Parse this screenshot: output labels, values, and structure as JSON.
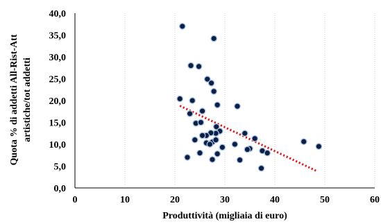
{
  "chart_data": {
    "type": "scatter",
    "title": "",
    "xlabel": "Produttività (migliaia di euro)",
    "ylabel_lines": [
      "Quota % di addetti All-Rist-Att",
      "artistiche/tot addetti"
    ],
    "xlim": [
      0,
      60
    ],
    "ylim": [
      0,
      40
    ],
    "x_ticks": [
      "0",
      "10",
      "20",
      "30",
      "40",
      "50",
      "60"
    ],
    "y_ticks": [
      "0,0",
      "5,0",
      "10,0",
      "15,0",
      "20,0",
      "25,0",
      "30,0",
      "35,0",
      "40,0"
    ],
    "grid": "vertical-dotted",
    "legend": "none",
    "series": [
      {
        "points": [
          {
            "x": 21.5,
            "y": 37.0
          },
          {
            "x": 27.8,
            "y": 34.2
          },
          {
            "x": 23.2,
            "y": 28.0
          },
          {
            "x": 24.8,
            "y": 27.8
          },
          {
            "x": 26.5,
            "y": 24.9
          },
          {
            "x": 27.3,
            "y": 24.0
          },
          {
            "x": 27.8,
            "y": 22.1
          },
          {
            "x": 21.0,
            "y": 20.4
          },
          {
            "x": 23.5,
            "y": 20.0
          },
          {
            "x": 28.5,
            "y": 19.0
          },
          {
            "x": 32.5,
            "y": 18.7
          },
          {
            "x": 25.5,
            "y": 17.6
          },
          {
            "x": 23.0,
            "y": 17.0
          },
          {
            "x": 24.2,
            "y": 14.8
          },
          {
            "x": 25.2,
            "y": 15.0
          },
          {
            "x": 28.3,
            "y": 14.0
          },
          {
            "x": 29.0,
            "y": 13.0
          },
          {
            "x": 28.2,
            "y": 12.5
          },
          {
            "x": 27.2,
            "y": 12.6
          },
          {
            "x": 26.3,
            "y": 12.0
          },
          {
            "x": 25.5,
            "y": 12.0
          },
          {
            "x": 34.0,
            "y": 12.5
          },
          {
            "x": 36.0,
            "y": 11.3
          },
          {
            "x": 24.0,
            "y": 11.0
          },
          {
            "x": 26.3,
            "y": 10.3
          },
          {
            "x": 27.5,
            "y": 10.5
          },
          {
            "x": 27.0,
            "y": 10.0
          },
          {
            "x": 28.2,
            "y": 11.0
          },
          {
            "x": 29.5,
            "y": 9.3
          },
          {
            "x": 32.0,
            "y": 10.0
          },
          {
            "x": 35.0,
            "y": 9.0
          },
          {
            "x": 34.5,
            "y": 8.8
          },
          {
            "x": 37.5,
            "y": 8.5
          },
          {
            "x": 38.5,
            "y": 8.0
          },
          {
            "x": 45.8,
            "y": 10.6
          },
          {
            "x": 48.8,
            "y": 9.5
          },
          {
            "x": 25.0,
            "y": 8.0
          },
          {
            "x": 28.5,
            "y": 7.8
          },
          {
            "x": 22.5,
            "y": 7.0
          },
          {
            "x": 27.5,
            "y": 6.5
          },
          {
            "x": 33.0,
            "y": 6.4
          },
          {
            "x": 37.3,
            "y": 4.5
          }
        ]
      }
    ],
    "trendline": {
      "x": [
        21.0,
        48.5
      ],
      "y": [
        18.8,
        3.8
      ],
      "color": "#e11919",
      "style": "dotted"
    },
    "colors": {
      "marker_fill": "#0a1f44",
      "marker_edge": "#a9bfe0",
      "trend": "#e11919"
    }
  }
}
